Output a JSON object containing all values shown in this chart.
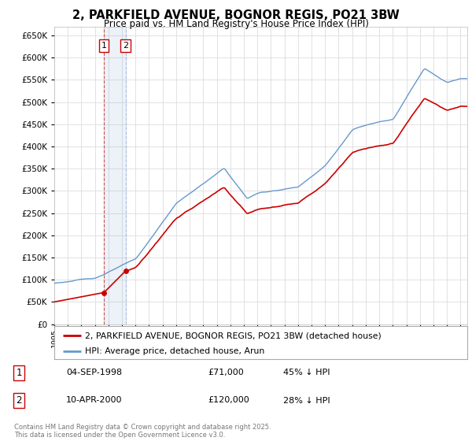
{
  "title": "2, PARKFIELD AVENUE, BOGNOR REGIS, PO21 3BW",
  "subtitle": "Price paid vs. HM Land Registry's House Price Index (HPI)",
  "property_label": "2, PARKFIELD AVENUE, BOGNOR REGIS, PO21 3BW (detached house)",
  "hpi_label": "HPI: Average price, detached house, Arun",
  "transaction_color": "#cc0000",
  "hpi_color": "#6699cc",
  "background_color": "#ffffff",
  "grid_color": "#dddddd",
  "ylim": [
    0,
    670000
  ],
  "yticks": [
    0,
    50000,
    100000,
    150000,
    200000,
    250000,
    300000,
    350000,
    400000,
    450000,
    500000,
    550000,
    600000,
    650000
  ],
  "transaction1_date": 1998.67,
  "transaction1_price": 71000,
  "transaction2_date": 2000.27,
  "transaction2_price": 120000,
  "footnote": "Contains HM Land Registry data © Crown copyright and database right 2025.\nThis data is licensed under the Open Government Licence v3.0.",
  "table_rows": [
    [
      "1",
      "04-SEP-1998",
      "£71,000",
      "45% ↓ HPI"
    ],
    [
      "2",
      "10-APR-2000",
      "£120,000",
      "28% ↓ HPI"
    ]
  ]
}
